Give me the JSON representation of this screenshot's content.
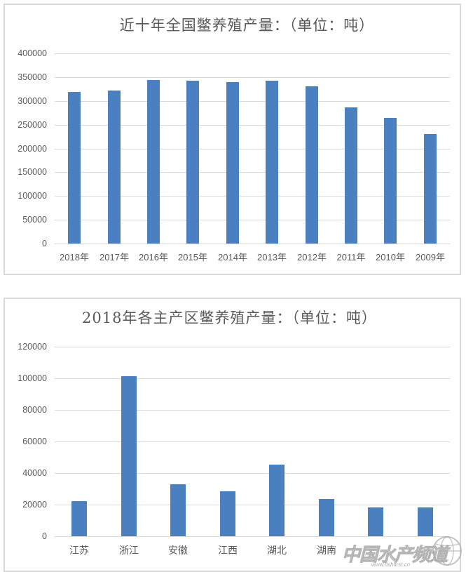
{
  "colors": {
    "bar": "#4a7fc0",
    "grid": "#d9d9d9",
    "text": "#595959",
    "border": "#d9d9d9"
  },
  "chart_data": [
    {
      "type": "bar",
      "title": "近十年全国鳖养殖产量：（单位：吨）",
      "xlabel": "",
      "ylabel": "",
      "categories": [
        "2018年",
        "2017年",
        "2016年",
        "2015年",
        "2014年",
        "2013年",
        "2012年",
        "2011年",
        "2010年",
        "2009年"
      ],
      "values": [
        319000,
        321500,
        344000,
        342000,
        340000,
        343000,
        331000,
        286000,
        264500,
        230000
      ],
      "ylim": [
        0,
        400000
      ],
      "yticks": [
        "0",
        "50000",
        "100000",
        "150000",
        "200000",
        "250000",
        "300000",
        "350000",
        "400000"
      ],
      "grid": true,
      "legend": null
    },
    {
      "type": "bar",
      "title": "2018年各主产区鳖养殖产量：（单位：吨）",
      "xlabel": "",
      "ylabel": "",
      "categories": [
        "江苏",
        "浙江",
        "安徽",
        "江西",
        "湖北",
        "湖南",
        "",
        ""
      ],
      "values": [
        22100,
        101300,
        32900,
        28400,
        45200,
        23600,
        18200,
        18200
      ],
      "ylim": [
        0,
        120000
      ],
      "yticks": [
        "0",
        "20000",
        "40000",
        "60000",
        "80000",
        "100000",
        "120000"
      ],
      "grid": true,
      "legend": null
    }
  ],
  "watermark": {
    "text": "中国水产频道",
    "url": "www.fishfirst.cn"
  }
}
